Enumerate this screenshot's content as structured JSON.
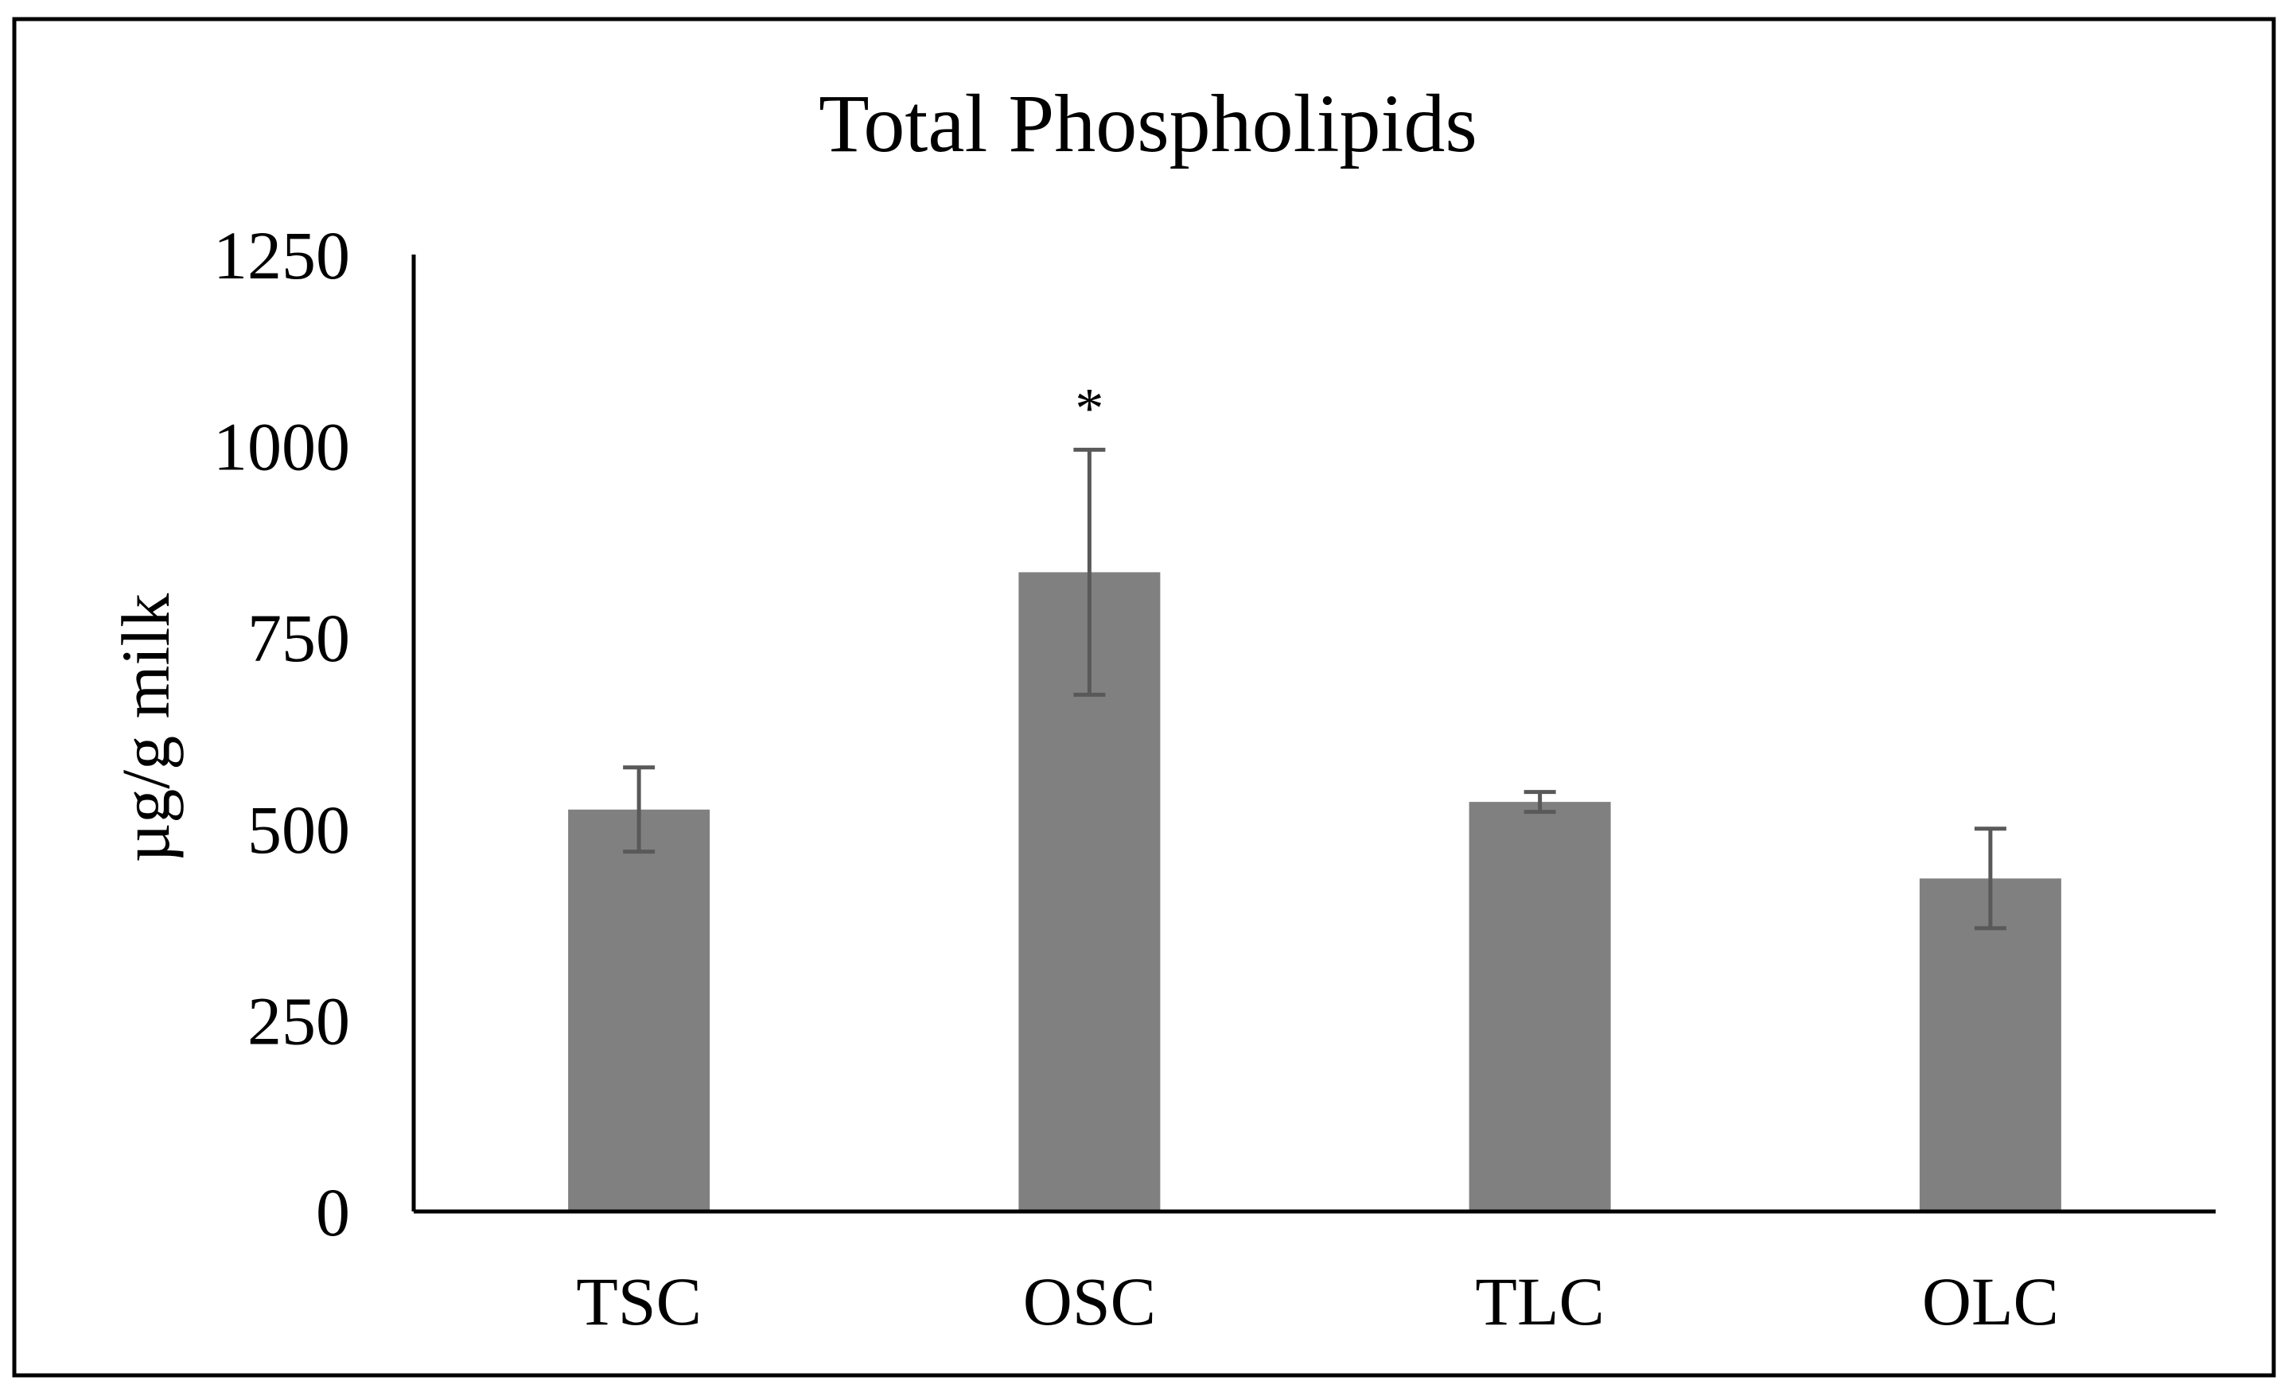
{
  "chart_data": {
    "type": "bar",
    "title": "Total Phospholipids",
    "xlabel": "",
    "ylabel": "µg/g milk",
    "categories": [
      "TSC",
      "OSC",
      "TLC",
      "OLC"
    ],
    "series": [
      {
        "values": [
          525,
          835,
          535,
          435
        ],
        "error": [
          55,
          160,
          13,
          65
        ],
        "annotations": [
          "",
          "*",
          "",
          ""
        ]
      }
    ],
    "ylim": [
      0,
      1250
    ],
    "yticks": [
      0,
      250,
      500,
      750,
      1000,
      1250
    ],
    "ytick_labels": [
      "0",
      "250",
      "500",
      "750",
      "1000",
      "1250"
    ],
    "grid": false,
    "legend": "none",
    "colors": {
      "bar": "#808080",
      "error_bar": "#595959",
      "axis": "#000000",
      "frame": "#000000"
    }
  }
}
